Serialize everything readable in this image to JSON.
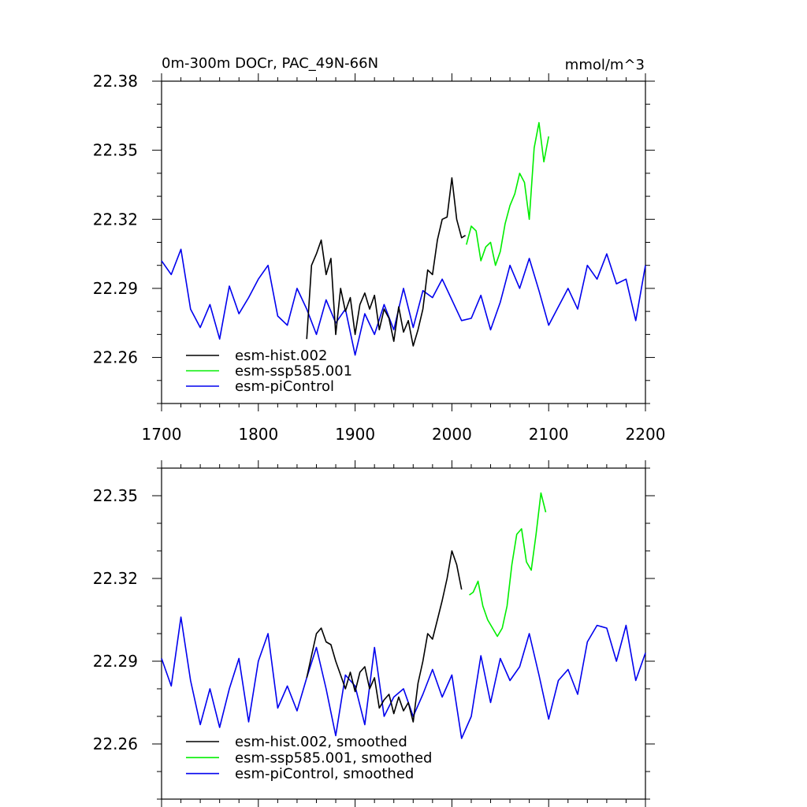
{
  "chart_data": [
    {
      "type": "line",
      "title": "0m-300m DOCr, PAC_49N-66N",
      "units": "mmol/m^3",
      "x_ticks": [
        "1700",
        "1800",
        "1900",
        "2000",
        "2100",
        "2200"
      ],
      "y_ticks": [
        "22.26",
        "22.29",
        "22.32",
        "22.35",
        "22.38"
      ],
      "xlim": [
        1700,
        2200
      ],
      "ylim": [
        22.24,
        22.38
      ],
      "grid": false,
      "legend_position": "bottom-left",
      "series": [
        {
          "name": "esm-hist.002",
          "color": "#000000",
          "x": [
            1850,
            1855,
            1860,
            1865,
            1870,
            1875,
            1880,
            1885,
            1890,
            1895,
            1900,
            1905,
            1910,
            1915,
            1920,
            1925,
            1930,
            1935,
            1940,
            1945,
            1950,
            1955,
            1960,
            1965,
            1970,
            1975,
            1980,
            1985,
            1990,
            1995,
            2000,
            2005,
            2010,
            2014
          ],
          "values": [
            22.268,
            22.3,
            22.305,
            22.311,
            22.296,
            22.303,
            22.27,
            22.29,
            22.28,
            22.286,
            22.27,
            22.283,
            22.288,
            22.281,
            22.287,
            22.272,
            22.281,
            22.277,
            22.267,
            22.282,
            22.271,
            22.276,
            22.265,
            22.272,
            22.281,
            22.298,
            22.296,
            22.311,
            22.32,
            22.321,
            22.338,
            22.32,
            22.312,
            22.313
          ]
        },
        {
          "name": "esm-ssp585.001",
          "color": "#00ee00",
          "x": [
            2015,
            2020,
            2025,
            2030,
            2035,
            2040,
            2045,
            2050,
            2055,
            2060,
            2065,
            2070,
            2075,
            2080,
            2085,
            2090,
            2095,
            2100
          ],
          "values": [
            22.309,
            22.317,
            22.315,
            22.302,
            22.308,
            22.31,
            22.3,
            22.306,
            22.318,
            22.326,
            22.331,
            22.34,
            22.336,
            22.32,
            22.351,
            22.362,
            22.345,
            22.356
          ]
        },
        {
          "name": "esm-piControl",
          "color": "#0000ee",
          "x": [
            1700,
            1710,
            1720,
            1730,
            1740,
            1750,
            1760,
            1770,
            1780,
            1790,
            1800,
            1810,
            1820,
            1830,
            1840,
            1850,
            1860,
            1870,
            1880,
            1890,
            1900,
            1910,
            1920,
            1930,
            1940,
            1950,
            1960,
            1970,
            1980,
            1990,
            2000,
            2010,
            2020,
            2030,
            2040,
            2050,
            2060,
            2070,
            2080,
            2090,
            2100,
            2110,
            2120,
            2130,
            2140,
            2150,
            2160,
            2170,
            2180,
            2190,
            2200
          ],
          "values": [
            22.302,
            22.296,
            22.307,
            22.281,
            22.273,
            22.283,
            22.268,
            22.291,
            22.279,
            22.286,
            22.294,
            22.3,
            22.278,
            22.274,
            22.29,
            22.281,
            22.27,
            22.285,
            22.275,
            22.281,
            22.261,
            22.279,
            22.27,
            22.283,
            22.272,
            22.29,
            22.273,
            22.289,
            22.286,
            22.294,
            22.285,
            22.276,
            22.277,
            22.287,
            22.272,
            22.284,
            22.3,
            22.29,
            22.303,
            22.289,
            22.274,
            22.282,
            22.29,
            22.281,
            22.3,
            22.294,
            22.305,
            22.292,
            22.294,
            22.276,
            22.3
          ]
        }
      ]
    },
    {
      "type": "line",
      "title": "",
      "x_ticks": [],
      "y_ticks": [
        "22.26",
        "22.29",
        "22.32",
        "22.35"
      ],
      "xlim": [
        1700,
        2200
      ],
      "ylim": [
        22.24,
        22.36
      ],
      "grid": false,
      "legend_position": "bottom-left",
      "series": [
        {
          "name": "esm-hist.002, smoothed",
          "color": "#000000",
          "x": [
            1850,
            1855,
            1860,
            1865,
            1870,
            1875,
            1880,
            1885,
            1890,
            1895,
            1900,
            1905,
            1910,
            1915,
            1920,
            1925,
            1930,
            1935,
            1940,
            1945,
            1950,
            1955,
            1960,
            1965,
            1970,
            1975,
            1980,
            1985,
            1990,
            1995,
            2000,
            2005,
            2010
          ],
          "values": [
            22.284,
            22.292,
            22.3,
            22.302,
            22.297,
            22.296,
            22.29,
            22.285,
            22.28,
            22.286,
            22.279,
            22.286,
            22.288,
            22.28,
            22.284,
            22.273,
            22.276,
            22.278,
            22.271,
            22.277,
            22.272,
            22.275,
            22.268,
            22.282,
            22.29,
            22.3,
            22.298,
            22.305,
            22.312,
            22.32,
            22.33,
            22.325,
            22.316
          ]
        },
        {
          "name": "esm-ssp585.001, smoothed",
          "color": "#00ee00",
          "x": [
            2018,
            2022,
            2027,
            2032,
            2037,
            2042,
            2047,
            2052,
            2057,
            2062,
            2067,
            2072,
            2077,
            2082,
            2087,
            2092,
            2097
          ],
          "values": [
            22.314,
            22.315,
            22.319,
            22.31,
            22.305,
            22.302,
            22.299,
            22.302,
            22.31,
            22.325,
            22.336,
            22.338,
            22.326,
            22.323,
            22.336,
            22.351,
            22.344
          ]
        },
        {
          "name": "esm-piControl, smoothed",
          "color": "#0000ee",
          "x": [
            1700,
            1710,
            1720,
            1730,
            1740,
            1750,
            1760,
            1770,
            1780,
            1790,
            1800,
            1810,
            1820,
            1830,
            1840,
            1850,
            1860,
            1870,
            1880,
            1890,
            1900,
            1910,
            1920,
            1930,
            1940,
            1950,
            1960,
            1970,
            1980,
            1990,
            2000,
            2010,
            2020,
            2030,
            2040,
            2050,
            2060,
            2070,
            2080,
            2090,
            2100,
            2110,
            2120,
            2130,
            2140,
            2150,
            2160,
            2170,
            2180,
            2190,
            2200
          ],
          "values": [
            22.291,
            22.281,
            22.306,
            22.283,
            22.267,
            22.28,
            22.266,
            22.28,
            22.291,
            22.268,
            22.29,
            22.3,
            22.273,
            22.281,
            22.272,
            22.284,
            22.295,
            22.28,
            22.263,
            22.285,
            22.281,
            22.267,
            22.295,
            22.27,
            22.277,
            22.28,
            22.27,
            22.278,
            22.287,
            22.277,
            22.285,
            22.262,
            22.27,
            22.292,
            22.275,
            22.291,
            22.283,
            22.288,
            22.3,
            22.285,
            22.269,
            22.283,
            22.287,
            22.278,
            22.297,
            22.303,
            22.302,
            22.29,
            22.303,
            22.283,
            22.293
          ]
        }
      ]
    }
  ]
}
